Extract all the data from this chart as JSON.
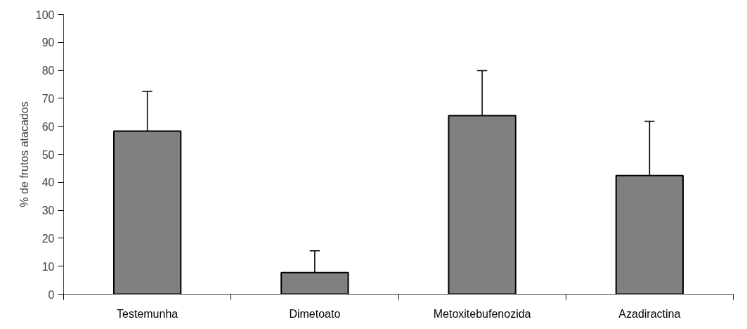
{
  "chart_data": {
    "type": "bar",
    "ylabel": "% de frutos atacados",
    "categories": [
      "Testemunha",
      "Dimetoato",
      "Metoxitebufenozida",
      "Azadiractina"
    ],
    "values": [
      58.3,
      7.7,
      63.8,
      42.4
    ],
    "errors": [
      [
        58.3,
        72.5
      ],
      [
        7.7,
        15.5
      ],
      [
        63.8,
        79.9
      ],
      [
        42.4,
        61.8
      ]
    ],
    "color": "#808080",
    "ylim": [
      0,
      100
    ],
    "yticks": [
      0,
      10,
      20,
      30,
      40,
      50,
      60,
      70,
      80,
      90,
      100
    ],
    "grid": false
  }
}
